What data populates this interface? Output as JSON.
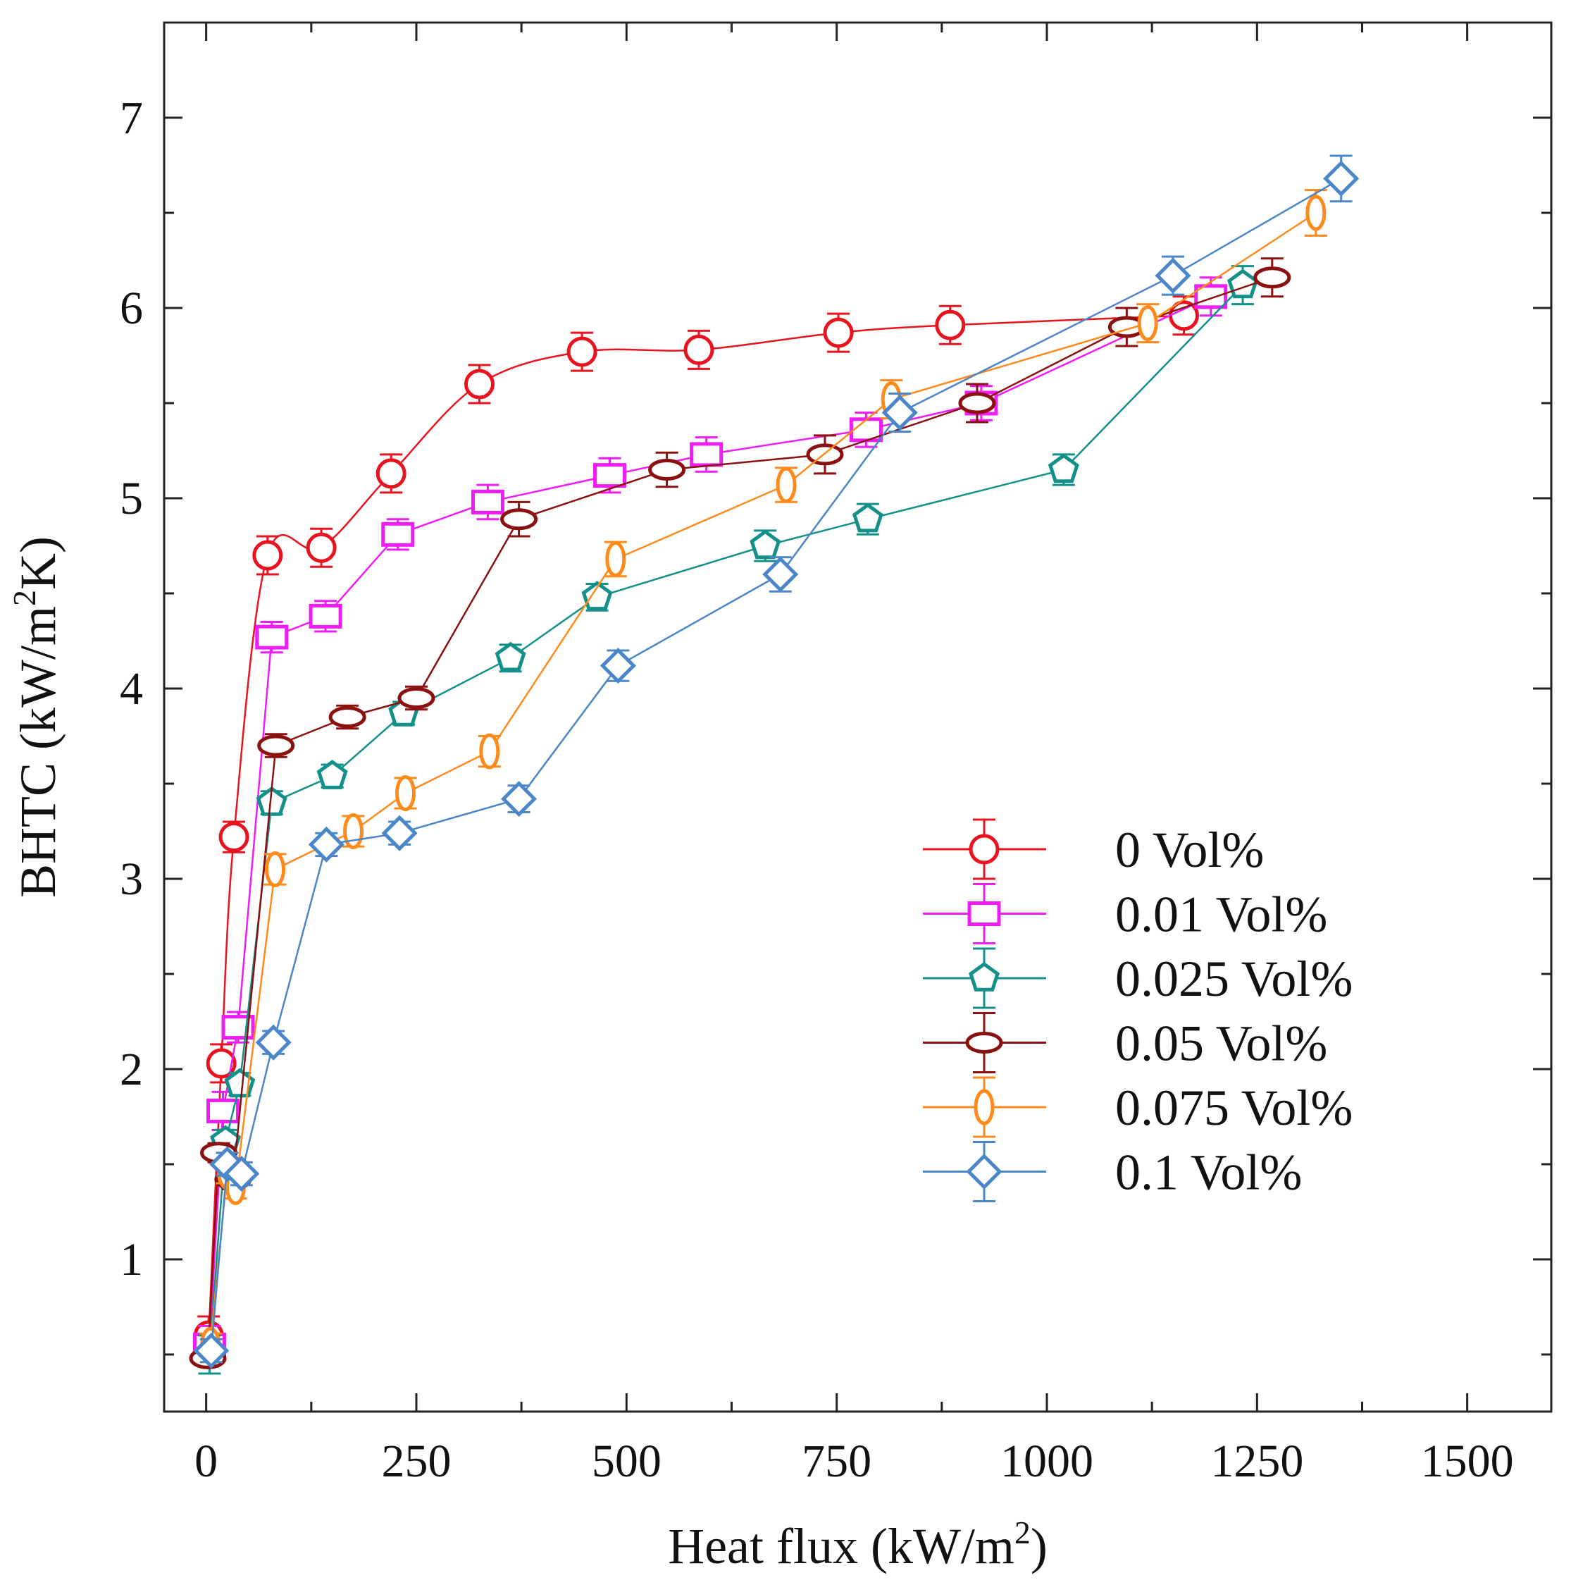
{
  "chart_data": {
    "type": "line",
    "xlabel": "Heat flux (kW/m",
    "xlabel_sup": "2",
    "xlabel_end": ")",
    "ylabel": "BHTC (kW/m",
    "ylabel_sup": "2",
    "ylabel_end": "K)",
    "xlim": [
      -50,
      1600
    ],
    "ylim": [
      0.2,
      7.5
    ],
    "xticks": [
      0,
      250,
      500,
      750,
      1000,
      1250,
      1500
    ],
    "xtick_labels": [
      "0",
      "250",
      "500",
      "750",
      "1000",
      "1250",
      "1500"
    ],
    "yticks": [
      1,
      2,
      3,
      4,
      5,
      6,
      7
    ],
    "ytick_labels": [
      "1",
      "2",
      "3",
      "4",
      "5",
      "6",
      "7"
    ],
    "legend_position": "right-center",
    "series": [
      {
        "name": "0 Vol%",
        "color": "#e8131f",
        "marker": "circle",
        "x": [
          3,
          18,
          33,
          73,
          137,
          220,
          325,
          447,
          586,
          752,
          885,
          1163
        ],
        "y": [
          0.6,
          2.03,
          3.22,
          4.7,
          4.74,
          5.13,
          5.6,
          5.77,
          5.78,
          5.87,
          5.91,
          5.96
        ],
        "err": [
          0.1,
          0.1,
          0.08,
          0.1,
          0.1,
          0.1,
          0.1,
          0.1,
          0.1,
          0.1,
          0.1,
          0.1
        ]
      },
      {
        "name": "0.01 Vol%",
        "color": "#f01cf5",
        "marker": "square",
        "x": [
          4,
          20,
          38,
          78,
          142,
          228,
          335,
          480,
          595,
          785,
          922,
          1195
        ],
        "y": [
          0.55,
          1.78,
          2.22,
          4.27,
          4.38,
          4.81,
          4.98,
          5.12,
          5.23,
          5.36,
          5.5,
          6.06
        ],
        "err": [
          0.1,
          0.1,
          0.08,
          0.08,
          0.08,
          0.08,
          0.09,
          0.09,
          0.09,
          0.09,
          0.09,
          0.1
        ]
      },
      {
        "name": "0.025 Vol%",
        "color": "#13908a",
        "marker": "pentagon",
        "x": [
          4,
          23,
          40,
          78,
          150,
          235,
          362,
          465,
          665,
          787,
          1020,
          1233
        ],
        "y": [
          0.5,
          1.62,
          1.92,
          3.4,
          3.54,
          3.87,
          4.16,
          4.48,
          4.75,
          4.89,
          5.15,
          6.12
        ],
        "err": [
          0.1,
          0.06,
          0.06,
          0.06,
          0.06,
          0.06,
          0.07,
          0.07,
          0.08,
          0.08,
          0.08,
          0.1
        ]
      },
      {
        "name": "0.05 Vol%",
        "color": "#8b1010",
        "marker": "ellipse-h",
        "x": [
          2,
          15,
          32,
          83,
          168,
          250,
          372,
          548,
          736,
          917,
          1095,
          1268
        ],
        "y": [
          0.48,
          1.56,
          1.42,
          3.7,
          3.85,
          3.95,
          4.89,
          5.15,
          5.23,
          5.5,
          5.9,
          6.16
        ],
        "err": [
          0.04,
          0.05,
          0.05,
          0.06,
          0.06,
          0.06,
          0.09,
          0.09,
          0.1,
          0.1,
          0.1,
          0.1
        ]
      },
      {
        "name": "0.075 Vol%",
        "color": "#ff8a1c",
        "marker": "ellipse-v",
        "x": [
          5,
          25,
          35,
          82,
          175,
          237,
          337,
          487,
          690,
          815,
          1120,
          1320
        ],
        "y": [
          0.55,
          1.46,
          1.38,
          3.05,
          3.25,
          3.45,
          3.67,
          4.68,
          5.07,
          5.52,
          5.92,
          6.5
        ],
        "err": [
          0.06,
          0.06,
          0.06,
          0.08,
          0.08,
          0.08,
          0.08,
          0.09,
          0.09,
          0.1,
          0.1,
          0.12
        ]
      },
      {
        "name": "0.1 Vol%",
        "color": "#4a86c8",
        "marker": "diamond",
        "x": [
          6,
          25,
          42,
          80,
          143,
          230,
          372,
          490,
          683,
          825,
          1150,
          1350
        ],
        "y": [
          0.52,
          1.5,
          1.45,
          2.14,
          3.18,
          3.24,
          3.42,
          4.12,
          4.6,
          5.45,
          6.17,
          6.68
        ],
        "err": [
          0.06,
          0.06,
          0.06,
          0.06,
          0.06,
          0.06,
          0.07,
          0.08,
          0.09,
          0.1,
          0.1,
          0.12
        ]
      }
    ]
  }
}
